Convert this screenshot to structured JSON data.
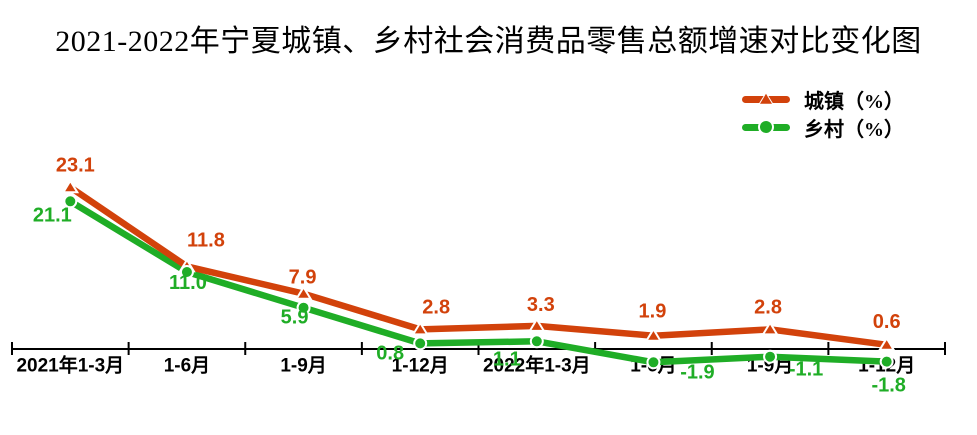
{
  "title": "2021-2022年宁夏城镇、乡村社会消费品零售总额增速对比变化图",
  "legend": {
    "items": [
      {
        "label": "城镇（%）",
        "series_key": "urban",
        "marker": "triangle-icon"
      },
      {
        "label": "乡村（%）",
        "series_key": "rural",
        "marker": "circle-icon"
      }
    ],
    "position": "top-right"
  },
  "colors": {
    "urban": "#d2420b",
    "rural": "#1fad26",
    "axis": "#000000",
    "background": "#ffffff",
    "marker_outline": "#ffffff"
  },
  "chart_data": {
    "type": "line",
    "categories": [
      "2021年1-3月",
      "1-6月",
      "1-9月",
      "1-12月",
      "2022年1-3月",
      "1-6月",
      "1-9月",
      "1-12月"
    ],
    "series": [
      {
        "name": "城镇（%）",
        "key": "urban",
        "marker": "triangle",
        "values": [
          23.1,
          11.8,
          7.9,
          2.8,
          3.3,
          1.9,
          2.8,
          0.6
        ],
        "label_offsets": [
          [
            5,
            -22
          ],
          [
            19,
            -26
          ],
          [
            -1,
            -16
          ],
          [
            16,
            -22
          ],
          [
            4,
            -21
          ],
          [
            -1,
            -24
          ],
          [
            -2,
            -22
          ],
          [
            0,
            -23
          ]
        ]
      },
      {
        "name": "乡村（%）",
        "key": "rural",
        "marker": "circle",
        "values": [
          21.1,
          11.0,
          5.9,
          0.8,
          1.1,
          -1.9,
          -1.1,
          -1.8
        ],
        "label_offsets": [
          [
            -18,
            14
          ],
          [
            1,
            11
          ],
          [
            -9,
            10
          ],
          [
            -30,
            10
          ],
          [
            -30,
            18
          ],
          [
            44,
            10
          ],
          [
            36,
            13
          ],
          [
            2,
            24
          ]
        ]
      }
    ],
    "xlabel": "",
    "ylabel": "",
    "ylim": [
      -4,
      25
    ],
    "baseline_value": 0,
    "grid": false,
    "y_axis_visible": false,
    "data_labels": true,
    "legend_position": "top-right"
  }
}
